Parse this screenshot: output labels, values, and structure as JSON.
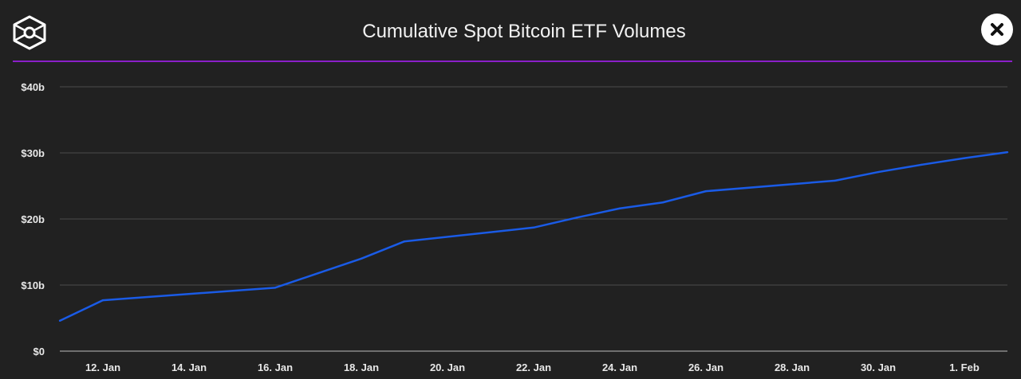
{
  "header": {
    "title": "Cumulative Spot Bitcoin ETF Volumes",
    "logo_icon": "cube-logo-icon",
    "close_icon": "close-icon"
  },
  "colors": {
    "line": "#1a5be6",
    "divider": "#8a1fc9",
    "background": "#212121",
    "grid": "#4a4a4a"
  },
  "chart_data": {
    "type": "line",
    "title": "Cumulative Spot Bitcoin ETF Volumes",
    "xlabel": "",
    "ylabel": "",
    "grid": true,
    "xlim": [
      "2024-01-11",
      "2024-02-02"
    ],
    "ylim": [
      0,
      40
    ],
    "y_unit": "billion USD",
    "y_ticks": [
      0,
      10,
      20,
      30,
      40
    ],
    "y_tick_labels": [
      "$0",
      "$10b",
      "$20b",
      "$30b",
      "$40b"
    ],
    "x_ticks": [
      "2024-01-12",
      "2024-01-14",
      "2024-01-16",
      "2024-01-18",
      "2024-01-20",
      "2024-01-22",
      "2024-01-24",
      "2024-01-26",
      "2024-01-28",
      "2024-01-30",
      "2024-02-01"
    ],
    "x_tick_labels": [
      "12. Jan",
      "14. Jan",
      "16. Jan",
      "18. Jan",
      "20. Jan",
      "22. Jan",
      "24. Jan",
      "26. Jan",
      "28. Jan",
      "30. Jan",
      "1. Feb"
    ],
    "x": [
      "2024-01-11",
      "2024-01-12",
      "2024-01-16",
      "2024-01-17",
      "2024-01-18",
      "2024-01-19",
      "2024-01-22",
      "2024-01-23",
      "2024-01-24",
      "2024-01-25",
      "2024-01-26",
      "2024-01-29",
      "2024-01-30",
      "2024-01-31",
      "2024-02-01",
      "2024-02-02"
    ],
    "values": [
      4.6,
      7.7,
      9.6,
      11.8,
      14.0,
      16.6,
      18.7,
      20.2,
      21.6,
      22.5,
      24.2,
      25.8,
      27.1,
      28.2,
      29.2,
      30.1
    ]
  }
}
